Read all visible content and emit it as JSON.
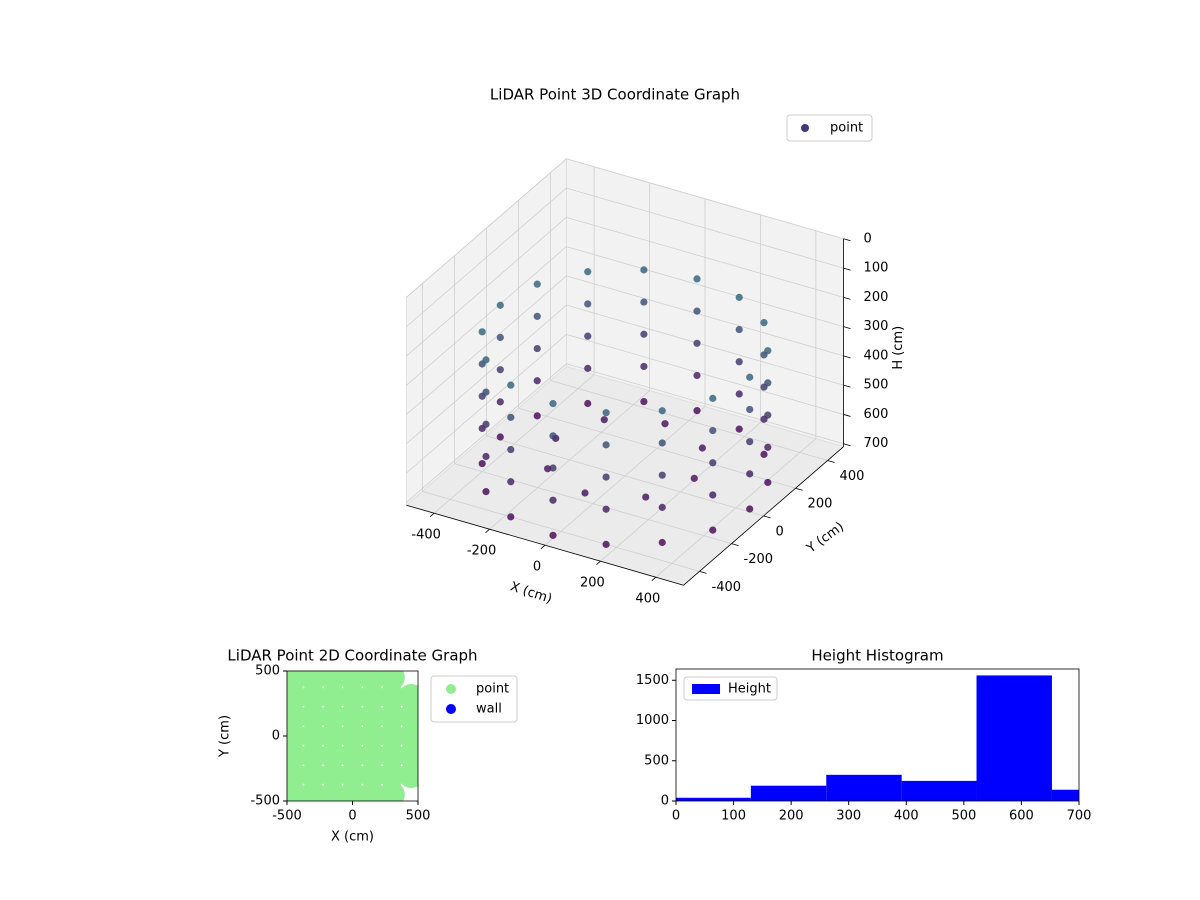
{
  "chart_data": [
    {
      "type": "scatter3d",
      "title": "LiDAR Point 3D Coordinate Graph",
      "x_label": "X (cm)",
      "y_label": "Y (cm)",
      "z_label": "H (cm)",
      "xlim": [
        -500,
        500
      ],
      "ylim": [
        -500,
        500
      ],
      "zlim": [
        710,
        0
      ],
      "xticks": [
        -400,
        -200,
        0,
        200,
        400
      ],
      "yticks": [
        -400,
        -200,
        0,
        200,
        400
      ],
      "zticks": [
        0,
        100,
        200,
        300,
        400,
        500,
        600,
        700
      ],
      "grid": true,
      "legend": "upper right",
      "colormap": [
        "#440154",
        "#21918c"
      ],
      "series": [
        {
          "name": "point",
          "color": "#3e3a7e",
          "x": [
            450,
            416,
            318,
            172,
            0,
            -172,
            -318,
            -416,
            -450,
            -416,
            -318,
            -172,
            0,
            172,
            318,
            416,
            450,
            416,
            318,
            172,
            0,
            -172,
            -318,
            -416,
            -450,
            -416,
            -318,
            -172,
            0,
            172,
            318,
            416,
            450,
            416,
            318,
            172,
            0,
            -172,
            -318,
            -416,
            -450,
            -416,
            -318,
            -172,
            0,
            172,
            318,
            416,
            450,
            416,
            318,
            172,
            0,
            -172,
            -318,
            -416,
            -450,
            -416,
            -318,
            -172,
            0,
            172,
            318,
            416,
            450,
            416,
            318,
            172,
            0,
            -172,
            -318,
            -416,
            -450,
            -416,
            -318,
            -172,
            0,
            172,
            318,
            416,
            250,
            177,
            0,
            -177,
            -250,
            -177,
            0,
            177
          ],
          "y": [
            0,
            172,
            318,
            416,
            450,
            416,
            318,
            172,
            0,
            -172,
            -318,
            -416,
            -450,
            -416,
            -318,
            -172,
            0,
            172,
            318,
            416,
            450,
            416,
            318,
            172,
            0,
            -172,
            -318,
            -416,
            -450,
            -416,
            -318,
            -172,
            0,
            172,
            318,
            416,
            450,
            416,
            318,
            172,
            0,
            -172,
            -318,
            -416,
            -450,
            -416,
            -318,
            -172,
            0,
            172,
            318,
            416,
            450,
            416,
            318,
            172,
            0,
            -172,
            -318,
            -416,
            -450,
            -416,
            -318,
            -172,
            0,
            172,
            318,
            416,
            450,
            416,
            318,
            172,
            0,
            -172,
            -318,
            -416,
            -450,
            -416,
            -318,
            -172,
            0,
            177,
            250,
            177,
            0,
            -177,
            -250,
            -177
          ],
          "z": [
            250,
            250,
            250,
            250,
            250,
            250,
            250,
            250,
            250,
            250,
            250,
            250,
            250,
            250,
            250,
            250,
            360,
            360,
            360,
            360,
            360,
            360,
            360,
            360,
            360,
            360,
            360,
            360,
            360,
            360,
            360,
            360,
            470,
            470,
            470,
            470,
            470,
            470,
            470,
            470,
            470,
            470,
            470,
            470,
            470,
            470,
            470,
            470,
            580,
            580,
            580,
            580,
            580,
            580,
            580,
            580,
            580,
            580,
            580,
            580,
            580,
            580,
            580,
            580,
            700,
            700,
            700,
            700,
            700,
            700,
            700,
            700,
            700,
            700,
            700,
            700,
            700,
            700,
            700,
            700,
            650,
            650,
            650,
            650,
            650,
            650,
            650,
            650
          ]
        }
      ]
    },
    {
      "type": "scatter",
      "title": "LiDAR Point 2D Coordinate Graph",
      "x_label": "X (cm)",
      "y_label": "Y (cm)",
      "xlim": [
        -500,
        500
      ],
      "ylim": [
        -500,
        500
      ],
      "xticks": [
        -500,
        0,
        500
      ],
      "yticks": [
        -500,
        0,
        500
      ],
      "legend": "outside upper right",
      "series": [
        {
          "name": "point",
          "color": "#90ee90",
          "x": [
            -450,
            -300,
            -150,
            0,
            150,
            300,
            -450,
            -300,
            -150,
            0,
            150,
            300,
            450,
            -450,
            -300,
            -150,
            0,
            150,
            300,
            450,
            -450,
            -300,
            -150,
            0,
            150,
            300,
            450,
            -450,
            -300,
            -150,
            0,
            150,
            300,
            450,
            -450,
            -300,
            -150,
            0,
            150,
            300,
            450,
            -450,
            -300,
            -150,
            0,
            150,
            300
          ],
          "y": [
            450,
            450,
            450,
            450,
            450,
            450,
            300,
            300,
            300,
            300,
            300,
            300,
            300,
            150,
            150,
            150,
            150,
            150,
            150,
            150,
            0,
            0,
            0,
            0,
            0,
            0,
            0,
            -150,
            -150,
            -150,
            -150,
            -150,
            -150,
            -150,
            -300,
            -300,
            -300,
            -300,
            -300,
            -300,
            -300,
            -450,
            -450,
            -450,
            -450,
            -450,
            -450
          ]
        },
        {
          "name": "wall",
          "color": "#0000ff",
          "x": [],
          "y": []
        }
      ]
    },
    {
      "type": "histogram",
      "title": "Height Histogram",
      "name": "Height",
      "color": "#0000ff",
      "bins": [
        0,
        130,
        261,
        392,
        522,
        653,
        783
      ],
      "values": [
        40,
        190,
        325,
        250,
        1560,
        140
      ],
      "xlim": [
        0,
        700
      ],
      "ylim": [
        0,
        1640
      ],
      "xticks": [
        0,
        100,
        200,
        300,
        400,
        500,
        600,
        700
      ],
      "yticks": [
        0,
        500,
        1000,
        1500
      ],
      "legend": "upper left"
    }
  ]
}
